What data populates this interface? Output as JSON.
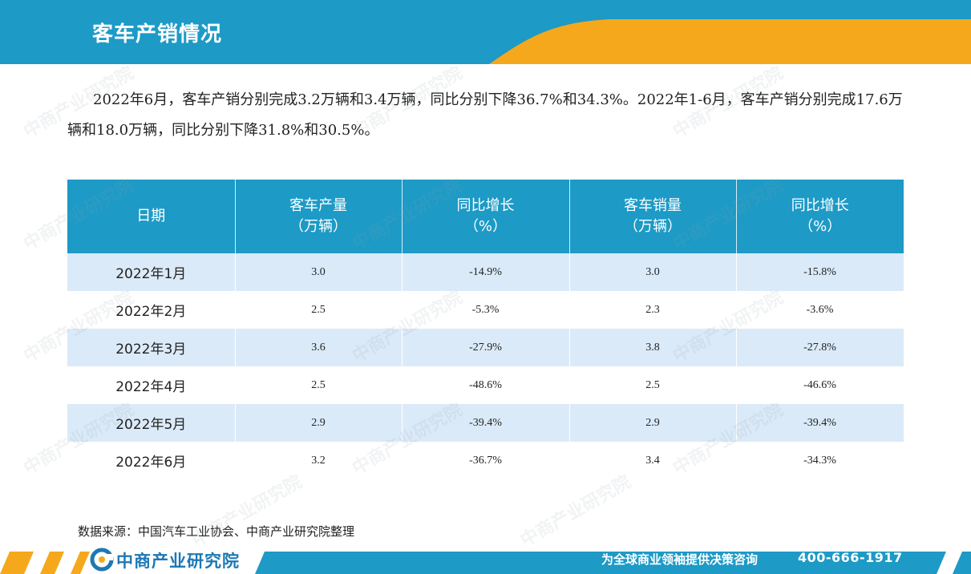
{
  "header": {
    "title": "客车产销情况"
  },
  "intro": "2022年6月，客车产销分别完成3.2万辆和3.4万辆，同比分别下降36.7%和34.3%。2022年1-6月，客车产销分别完成17.6万辆和18.0万辆，同比分别下降31.8%和30.5%。",
  "table": {
    "headers": [
      {
        "line1": "日期",
        "line2": ""
      },
      {
        "line1": "客车产量",
        "line2": "（万辆）"
      },
      {
        "line1": "同比增长",
        "line2": "（%）"
      },
      {
        "line1": "客车销量",
        "line2": "（万辆）"
      },
      {
        "line1": "同比增长",
        "line2": "（%）"
      }
    ],
    "rows": [
      [
        "2022年1月",
        "3.0",
        "-14.9%",
        "3.0",
        "-15.8%"
      ],
      [
        "2022年2月",
        "2.5",
        "-5.3%",
        "2.3",
        "-3.6%"
      ],
      [
        "2022年3月",
        "3.6",
        "-27.9%",
        "3.8",
        "-27.8%"
      ],
      [
        "2022年4月",
        "2.5",
        "-48.6%",
        "2.5",
        "-46.6%"
      ],
      [
        "2022年5月",
        "2.9",
        "-39.4%",
        "2.9",
        "-39.4%"
      ],
      [
        "2022年6月",
        "3.2",
        "-36.7%",
        "3.4",
        "-34.3%"
      ]
    ]
  },
  "source": "数据来源：中国汽车工业协会、中商产业研究院整理",
  "footer": {
    "logo": "中商产业研究院",
    "slogan": "为全球商业领袖提供决策咨询",
    "phone": "400-666-1917"
  },
  "watermark": "中商产业研究院 www.askci.com/reports",
  "colors": {
    "primary": "#1d9ac6",
    "accent": "#f5a81c",
    "row_alt": "#dbeaf8"
  }
}
